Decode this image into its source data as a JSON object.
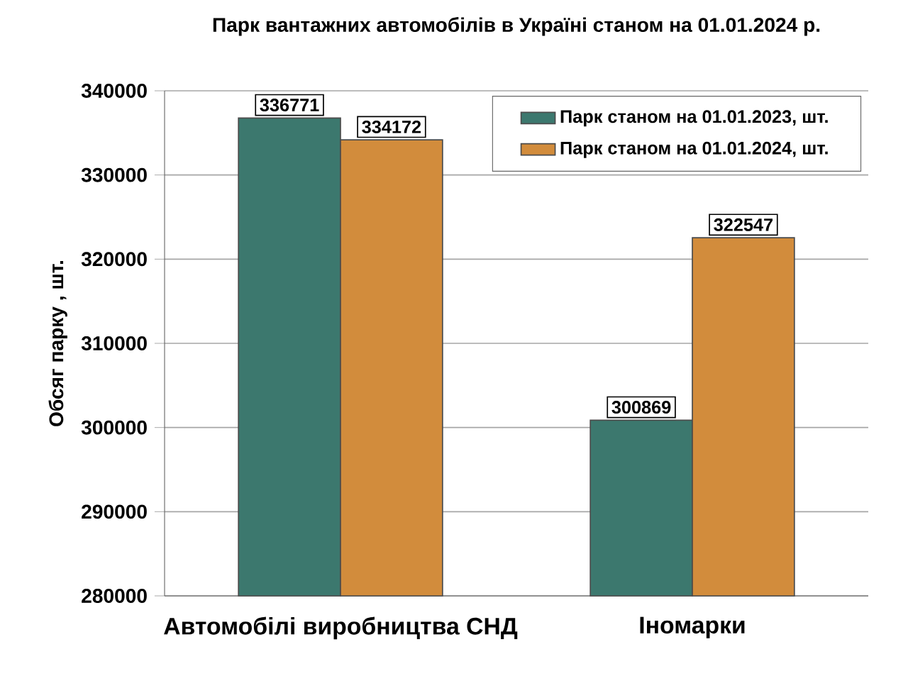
{
  "chart_data": {
    "type": "bar",
    "title": "Парк вантажних автомобілів в Україні станом на 01.01.2024 р.",
    "ylabel": "Обсяг парку , шт.",
    "categories": [
      "Автомобілі виробництва СНД",
      "Іномарки"
    ],
    "series": [
      {
        "name": "Парк станом на 01.01.2023, шт.",
        "color": "#3c786e",
        "values": [
          336771,
          300869
        ]
      },
      {
        "name": "Парк станом на 01.01.2024, шт.",
        "color": "#d28c3c",
        "values": [
          334172,
          322547
        ]
      }
    ],
    "ylim": [
      280000,
      340000
    ],
    "yticks": [
      280000,
      290000,
      300000,
      310000,
      320000,
      330000,
      340000
    ],
    "grid": "y",
    "legend": "top right",
    "data_labels": true
  }
}
